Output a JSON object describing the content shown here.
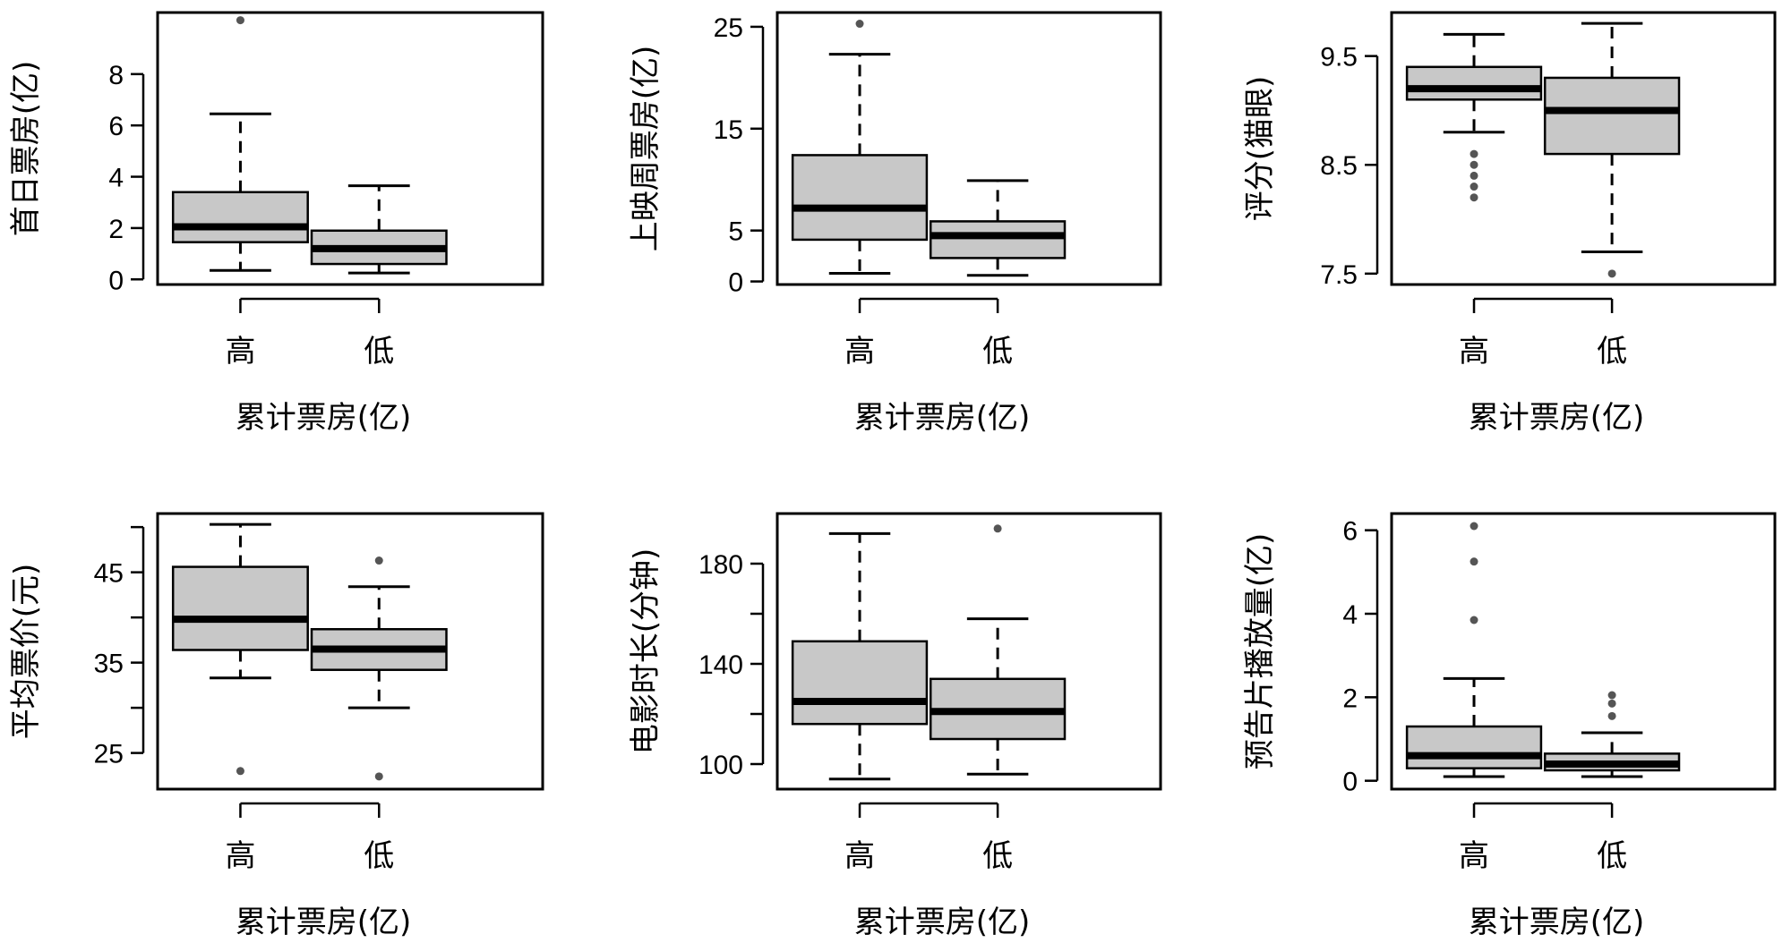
{
  "chart_data": [
    {
      "type": "box",
      "xlabel": "累计票房(亿)",
      "ylabel": "首日票房(亿)",
      "categories": [
        "高",
        "低"
      ],
      "yticks": [
        0,
        2,
        4,
        6,
        8
      ],
      "ylim": [
        -0.2,
        10.4
      ],
      "boxes": [
        {
          "whisker_low": 0.35,
          "q1": 1.45,
          "median": 2.05,
          "q3": 3.4,
          "whisker_high": 6.45,
          "outliers": [
            10.1
          ]
        },
        {
          "whisker_low": 0.25,
          "q1": 0.6,
          "median": 1.2,
          "q3": 1.9,
          "whisker_high": 3.65,
          "outliers": []
        }
      ]
    },
    {
      "type": "box",
      "xlabel": "累计票房(亿)",
      "ylabel": "上映周票房(亿)",
      "categories": [
        "高",
        "低"
      ],
      "yticks": [
        0,
        5,
        15,
        25
      ],
      "ylim": [
        -0.3,
        26.4
      ],
      "boxes": [
        {
          "whisker_low": 0.8,
          "q1": 4.1,
          "median": 7.2,
          "q3": 12.4,
          "whisker_high": 22.3,
          "outliers": [
            25.3
          ]
        },
        {
          "whisker_low": 0.6,
          "q1": 2.3,
          "median": 4.5,
          "q3": 5.9,
          "whisker_high": 9.9,
          "outliers": []
        }
      ]
    },
    {
      "type": "box",
      "xlabel": "累计票房(亿)",
      "ylabel": "评分(猫眼)",
      "categories": [
        "高",
        "低"
      ],
      "yticks": [
        7.5,
        8.5,
        9.5
      ],
      "ylim": [
        7.4,
        9.9
      ],
      "yticklabels": [
        "7.5",
        "8.5",
        "9.5"
      ],
      "boxes": [
        {
          "whisker_low": 8.8,
          "q1": 9.1,
          "median": 9.2,
          "q3": 9.4,
          "whisker_high": 9.7,
          "outliers": [
            8.6,
            8.5,
            8.4,
            8.3,
            8.2
          ]
        },
        {
          "whisker_low": 7.7,
          "q1": 8.6,
          "median": 9.0,
          "q3": 9.3,
          "whisker_high": 9.8,
          "outliers": [
            7.5
          ]
        }
      ]
    },
    {
      "type": "box",
      "xlabel": "累计票房(亿)",
      "ylabel": "平均票价(元)",
      "categories": [
        "高",
        "低"
      ],
      "yticks": [
        25,
        30,
        35,
        40,
        45,
        50
      ],
      "yticklabels": [
        "25",
        "",
        "35",
        "",
        "45",
        ""
      ],
      "ylim": [
        21,
        51.5
      ],
      "boxes": [
        {
          "whisker_low": 33.3,
          "q1": 36.4,
          "median": 39.8,
          "q3": 45.6,
          "whisker_high": 50.3,
          "outliers": [
            23.0
          ]
        },
        {
          "whisker_low": 30.0,
          "q1": 34.2,
          "median": 36.5,
          "q3": 38.7,
          "whisker_high": 43.4,
          "outliers": [
            46.3,
            22.4
          ]
        }
      ]
    },
    {
      "type": "box",
      "xlabel": "累计票房(亿)",
      "ylabel": "电影时长(分钟)",
      "categories": [
        "高",
        "低"
      ],
      "yticks": [
        100,
        120,
        140,
        160,
        180
      ],
      "yticklabels": [
        "100",
        "",
        "140",
        "",
        "180"
      ],
      "ylim": [
        90,
        200
      ],
      "boxes": [
        {
          "whisker_low": 94,
          "q1": 116,
          "median": 125,
          "q3": 149,
          "whisker_high": 192,
          "outliers": []
        },
        {
          "whisker_low": 96,
          "q1": 110,
          "median": 121,
          "q3": 134,
          "whisker_high": 158,
          "outliers": [
            194
          ]
        }
      ]
    },
    {
      "type": "box",
      "xlabel": "累计票房(亿)",
      "ylabel": "预告片播放量(亿)",
      "categories": [
        "高",
        "低"
      ],
      "yticks": [
        0,
        2,
        4,
        6
      ],
      "ylim": [
        -0.2,
        6.4
      ],
      "boxes": [
        {
          "whisker_low": 0.1,
          "q1": 0.3,
          "median": 0.6,
          "q3": 1.3,
          "whisker_high": 2.45,
          "outliers": [
            3.85,
            5.25,
            6.1
          ]
        },
        {
          "whisker_low": 0.1,
          "q1": 0.25,
          "median": 0.4,
          "q3": 0.65,
          "whisker_high": 1.15,
          "outliers": [
            1.55,
            1.85,
            2.05
          ]
        }
      ]
    }
  ]
}
